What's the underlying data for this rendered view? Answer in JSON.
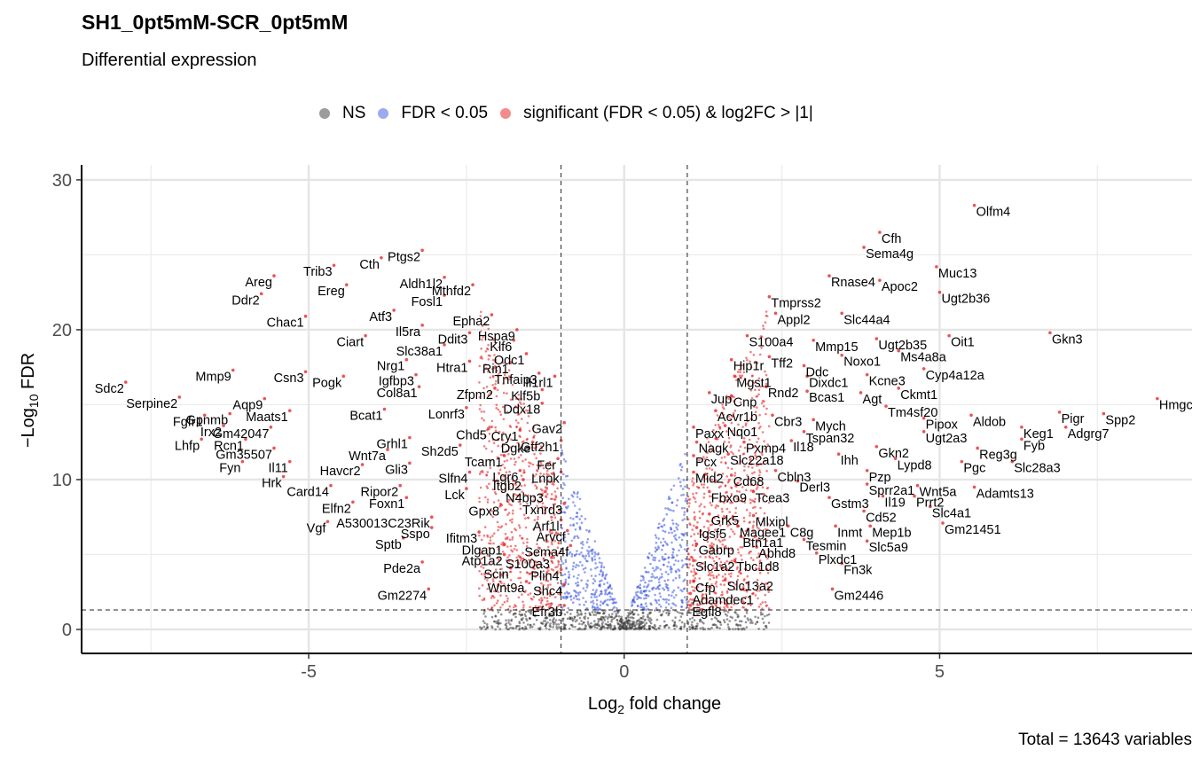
{
  "chart_data": {
    "type": "scatter",
    "title": "SH1_0pt5mM-SCR_0pt5mM",
    "subtitle": "Differential expression",
    "caption": "Total = 13643 variables",
    "xlabel": "Log2 fold change",
    "ylabel": "-Log10 FDR",
    "xlim": [
      -8.6,
      9.0
    ],
    "ylim": [
      -1.6,
      31.0
    ],
    "x_ticks": [
      -5,
      0,
      5
    ],
    "y_ticks": [
      0,
      10,
      20,
      30
    ],
    "grid": true,
    "legend_position": "top",
    "thresholds": {
      "log2fc": [
        -1,
        1
      ],
      "fdr_line": 1.3
    },
    "legend": [
      {
        "label": "NS",
        "color": "#3a3a3a"
      },
      {
        "label": "FDR < 0.05",
        "color": "#3b55e0"
      },
      {
        "label": "significant (FDR < 0.05) & log2FC > |1|",
        "color": "#e41a1c"
      }
    ],
    "labeled_points": [
      {
        "gene": "Olfm4",
        "x": 5.55,
        "y": 28.3
      },
      {
        "gene": "Cfh",
        "x": 4.05,
        "y": 26.5
      },
      {
        "gene": "Sema4g",
        "x": 3.8,
        "y": 25.5
      },
      {
        "gene": "Muc13",
        "x": 4.95,
        "y": 24.2
      },
      {
        "gene": "Rnase4",
        "x": 3.25,
        "y": 23.6
      },
      {
        "gene": "Apoc2",
        "x": 4.05,
        "y": 23.3
      },
      {
        "gene": "Ugt2b36",
        "x": 5.0,
        "y": 22.5
      },
      {
        "gene": "Tmprss2",
        "x": 2.3,
        "y": 22.2
      },
      {
        "gene": "Appl2",
        "x": 2.4,
        "y": 21.1
      },
      {
        "gene": "Slc44a4",
        "x": 3.45,
        "y": 21.1
      },
      {
        "gene": "Oit1",
        "x": 5.15,
        "y": 19.6
      },
      {
        "gene": "Ugt2b35",
        "x": 4.0,
        "y": 19.4
      },
      {
        "gene": "Gkn3",
        "x": 6.75,
        "y": 19.8
      },
      {
        "gene": "Mmp15",
        "x": 3.0,
        "y": 19.3
      },
      {
        "gene": "S100a4",
        "x": 1.95,
        "y": 19.6
      },
      {
        "gene": "Ms4a8a",
        "x": 4.35,
        "y": 18.6
      },
      {
        "gene": "Noxo1",
        "x": 3.45,
        "y": 18.3
      },
      {
        "gene": "Cyp4a12a",
        "x": 4.75,
        "y": 17.4
      },
      {
        "gene": "Tff2",
        "x": 2.3,
        "y": 18.2
      },
      {
        "gene": "Hip1r",
        "x": 1.7,
        "y": 18.0
      },
      {
        "gene": "Ddc",
        "x": 2.85,
        "y": 17.6
      },
      {
        "gene": "Kcne3",
        "x": 3.85,
        "y": 17.0
      },
      {
        "gene": "Dixdc1",
        "x": 2.9,
        "y": 16.9
      },
      {
        "gene": "Mgst1",
        "x": 1.75,
        "y": 16.9
      },
      {
        "gene": "Rnd2",
        "x": 2.25,
        "y": 16.2
      },
      {
        "gene": "Bcas1",
        "x": 2.9,
        "y": 15.9
      },
      {
        "gene": "Agt",
        "x": 3.75,
        "y": 15.8
      },
      {
        "gene": "Ckmt1",
        "x": 4.35,
        "y": 16.1
      },
      {
        "gene": "Jup",
        "x": 1.35,
        "y": 15.8
      },
      {
        "gene": "Cnp",
        "x": 1.7,
        "y": 15.6
      },
      {
        "gene": "Tm4sf20",
        "x": 4.15,
        "y": 14.9
      },
      {
        "gene": "Acvr1b",
        "x": 1.45,
        "y": 14.6
      },
      {
        "gene": "Cbr3",
        "x": 2.35,
        "y": 14.3
      },
      {
        "gene": "Mych",
        "x": 3.0,
        "y": 14.0
      },
      {
        "gene": "Pipox",
        "x": 4.75,
        "y": 14.1
      },
      {
        "gene": "Aldob",
        "x": 5.5,
        "y": 14.3
      },
      {
        "gene": "Pigr",
        "x": 6.9,
        "y": 14.5
      },
      {
        "gene": "Spp2",
        "x": 7.6,
        "y": 14.4
      },
      {
        "gene": "Hmgcs2",
        "x": 8.45,
        "y": 15.4
      },
      {
        "gene": "Keg1",
        "x": 6.3,
        "y": 13.5
      },
      {
        "gene": "Adgrg7",
        "x": 7.0,
        "y": 13.5
      },
      {
        "gene": "Tspan32",
        "x": 2.85,
        "y": 13.2
      },
      {
        "gene": "Ugt2a3",
        "x": 4.75,
        "y": 13.2
      },
      {
        "gene": "Paxx",
        "x": 1.1,
        "y": 13.5
      },
      {
        "gene": "Nqo1",
        "x": 1.6,
        "y": 13.6
      },
      {
        "gene": "Il18",
        "x": 2.65,
        "y": 12.6
      },
      {
        "gene": "Nagk",
        "x": 1.15,
        "y": 12.5
      },
      {
        "gene": "Pxmp4",
        "x": 1.9,
        "y": 12.5
      },
      {
        "gene": "Fyb",
        "x": 6.3,
        "y": 12.7
      },
      {
        "gene": "Gkn2",
        "x": 4.0,
        "y": 12.2
      },
      {
        "gene": "Reg3g",
        "x": 5.6,
        "y": 12.1
      },
      {
        "gene": "Pcx",
        "x": 1.1,
        "y": 11.6
      },
      {
        "gene": "Slc22a18",
        "x": 1.65,
        "y": 11.7
      },
      {
        "gene": "Ihh",
        "x": 3.4,
        "y": 11.7
      },
      {
        "gene": "Lypd8",
        "x": 4.3,
        "y": 11.4
      },
      {
        "gene": "Pgc",
        "x": 5.35,
        "y": 11.2
      },
      {
        "gene": "Slc28a3",
        "x": 6.15,
        "y": 11.2
      },
      {
        "gene": "Cd68",
        "x": 1.7,
        "y": 10.3
      },
      {
        "gene": "Mid2",
        "x": 1.1,
        "y": 10.5
      },
      {
        "gene": "Cbln3",
        "x": 2.4,
        "y": 10.6
      },
      {
        "gene": "Pzp",
        "x": 3.85,
        "y": 10.6
      },
      {
        "gene": "Derl3",
        "x": 2.75,
        "y": 9.9
      },
      {
        "gene": "Sprr2a1",
        "x": 3.85,
        "y": 9.7
      },
      {
        "gene": "Wnt5a",
        "x": 4.65,
        "y": 9.6
      },
      {
        "gene": "Adamts13",
        "x": 5.55,
        "y": 9.5
      },
      {
        "gene": "Fbxo9",
        "x": 1.35,
        "y": 9.2
      },
      {
        "gene": "Tcea3",
        "x": 2.05,
        "y": 9.2
      },
      {
        "gene": "Prrt2",
        "x": 4.6,
        "y": 8.9
      },
      {
        "gene": "Il19",
        "x": 4.1,
        "y": 8.9
      },
      {
        "gene": "Gstm3",
        "x": 3.25,
        "y": 8.8
      },
      {
        "gene": "Slc4a1",
        "x": 4.85,
        "y": 8.2
      },
      {
        "gene": "Cd52",
        "x": 3.8,
        "y": 7.9
      },
      {
        "gene": "Grk5",
        "x": 1.35,
        "y": 7.7
      },
      {
        "gene": "Mlxipl",
        "x": 2.05,
        "y": 7.6
      },
      {
        "gene": "Gm21451",
        "x": 5.05,
        "y": 7.1
      },
      {
        "gene": "Magee1",
        "x": 1.8,
        "y": 6.9
      },
      {
        "gene": "C8g",
        "x": 2.6,
        "y": 6.9
      },
      {
        "gene": "Inmt",
        "x": 3.35,
        "y": 6.9
      },
      {
        "gene": "Mep1b",
        "x": 3.9,
        "y": 6.9
      },
      {
        "gene": "Igsf5",
        "x": 1.15,
        "y": 6.8
      },
      {
        "gene": "Btn1a1",
        "x": 1.85,
        "y": 6.2
      },
      {
        "gene": "Tesmin",
        "x": 2.85,
        "y": 6.0
      },
      {
        "gene": "Slc5a9",
        "x": 3.85,
        "y": 5.9
      },
      {
        "gene": "Gabrp",
        "x": 1.15,
        "y": 5.7
      },
      {
        "gene": "Abhd8",
        "x": 2.1,
        "y": 5.5
      },
      {
        "gene": "Plxdc1",
        "x": 3.05,
        "y": 5.1
      },
      {
        "gene": "Slc1a2",
        "x": 1.1,
        "y": 4.6
      },
      {
        "gene": "Tbc1d8",
        "x": 1.75,
        "y": 4.6
      },
      {
        "gene": "Fn3k",
        "x": 3.45,
        "y": 4.4
      },
      {
        "gene": "Cfp",
        "x": 1.1,
        "y": 3.2
      },
      {
        "gene": "Slc13a2",
        "x": 1.6,
        "y": 3.3
      },
      {
        "gene": "Gm2446",
        "x": 3.3,
        "y": 2.7
      },
      {
        "gene": "Adamdec1",
        "x": 1.05,
        "y": 2.4
      },
      {
        "gene": "Egfl8",
        "x": 1.05,
        "y": 1.6
      },
      {
        "gene": "Ptgs2",
        "x": -3.2,
        "y": 25.3
      },
      {
        "gene": "Cth",
        "x": -3.85,
        "y": 24.8
      },
      {
        "gene": "Trib3",
        "x": -4.6,
        "y": 24.3
      },
      {
        "gene": "Aldh1l2",
        "x": -2.85,
        "y": 23.5
      },
      {
        "gene": "Areg",
        "x": -5.55,
        "y": 23.6
      },
      {
        "gene": "Ereg",
        "x": -4.4,
        "y": 23.0
      },
      {
        "gene": "Mthfd2",
        "x": -2.4,
        "y": 23.0
      },
      {
        "gene": "Ddr2",
        "x": -5.75,
        "y": 22.4
      },
      {
        "gene": "Fosl1",
        "x": -2.85,
        "y": 22.3
      },
      {
        "gene": "Epha2",
        "x": -2.1,
        "y": 21.0
      },
      {
        "gene": "Atf3",
        "x": -3.65,
        "y": 21.3
      },
      {
        "gene": "Chac1",
        "x": -5.05,
        "y": 20.9
      },
      {
        "gene": "Il5ra",
        "x": -3.2,
        "y": 20.3
      },
      {
        "gene": "Hspa9",
        "x": -1.7,
        "y": 20.0
      },
      {
        "gene": "Ddit3",
        "x": -2.45,
        "y": 19.8
      },
      {
        "gene": "Ciart",
        "x": -4.1,
        "y": 19.6
      },
      {
        "gene": "Slc38a1",
        "x": -2.85,
        "y": 19.0
      },
      {
        "gene": "Klf6",
        "x": -1.75,
        "y": 19.3
      },
      {
        "gene": "Odc1",
        "x": -1.55,
        "y": 18.4
      },
      {
        "gene": "Nrg1",
        "x": -3.45,
        "y": 18.0
      },
      {
        "gene": "Htra1",
        "x": -2.45,
        "y": 17.9
      },
      {
        "gene": "Rin1",
        "x": -1.8,
        "y": 17.8
      },
      {
        "gene": "Mmp9",
        "x": -6.2,
        "y": 17.3
      },
      {
        "gene": "Csn3",
        "x": -5.05,
        "y": 17.2
      },
      {
        "gene": "Pogk",
        "x": -4.45,
        "y": 16.9
      },
      {
        "gene": "Igfbp3",
        "x": -3.3,
        "y": 17.0
      },
      {
        "gene": "Tnfaip3",
        "x": -1.35,
        "y": 17.1
      },
      {
        "gene": "Il1rl1",
        "x": -1.1,
        "y": 16.9
      },
      {
        "gene": "Col8a1",
        "x": -3.25,
        "y": 16.2
      },
      {
        "gene": "Zfpm2",
        "x": -2.05,
        "y": 16.1
      },
      {
        "gene": "Klf5b",
        "x": -1.3,
        "y": 16.0
      },
      {
        "gene": "Sdc2",
        "x": -7.9,
        "y": 16.5
      },
      {
        "gene": "Serpine2",
        "x": -7.05,
        "y": 15.5
      },
      {
        "gene": "Ddx18",
        "x": -1.3,
        "y": 15.1
      },
      {
        "gene": "Lonrf3",
        "x": -2.5,
        "y": 14.8
      },
      {
        "gene": "Aqp9",
        "x": -5.7,
        "y": 15.4
      },
      {
        "gene": "Bcat1",
        "x": -3.8,
        "y": 14.7
      },
      {
        "gene": "Gpnmb",
        "x": -6.25,
        "y": 14.4
      },
      {
        "gene": "Maats1",
        "x": -5.3,
        "y": 14.6
      },
      {
        "gene": "Fgfr1",
        "x": -6.65,
        "y": 14.3
      },
      {
        "gene": "Gav2",
        "x": -0.95,
        "y": 13.8
      },
      {
        "gene": "Irx2",
        "x": -6.35,
        "y": 13.6
      },
      {
        "gene": "Gm42047",
        "x": -5.6,
        "y": 13.5
      },
      {
        "gene": "Chd5",
        "x": -2.15,
        "y": 13.4
      },
      {
        "gene": "Cry1",
        "x": -1.65,
        "y": 13.3
      },
      {
        "gene": "Lhfp",
        "x": -6.7,
        "y": 12.7
      },
      {
        "gene": "Rcn1",
        "x": -6.0,
        "y": 12.7
      },
      {
        "gene": "Grhl1",
        "x": -3.4,
        "y": 12.8
      },
      {
        "gene": "Gtf2h1",
        "x": -1.0,
        "y": 12.6
      },
      {
        "gene": "Dgke",
        "x": -1.45,
        "y": 12.5
      },
      {
        "gene": "Gm35507",
        "x": -5.55,
        "y": 12.1
      },
      {
        "gene": "Wnt7a",
        "x": -3.75,
        "y": 12.0
      },
      {
        "gene": "Sh2d5",
        "x": -2.6,
        "y": 12.3
      },
      {
        "gene": "Tcam1",
        "x": -1.9,
        "y": 11.6
      },
      {
        "gene": "Fer",
        "x": -1.05,
        "y": 11.4
      },
      {
        "gene": "Fyn",
        "x": -6.05,
        "y": 11.2
      },
      {
        "gene": "Il11",
        "x": -5.3,
        "y": 11.2
      },
      {
        "gene": "Havcr2",
        "x": -4.15,
        "y": 11.0
      },
      {
        "gene": "Gli3",
        "x": -3.4,
        "y": 11.1
      },
      {
        "gene": "Lgr6",
        "x": -1.65,
        "y": 10.6
      },
      {
        "gene": "Lnpk",
        "x": -1.0,
        "y": 10.5
      },
      {
        "gene": "Slfn4",
        "x": -2.45,
        "y": 10.5
      },
      {
        "gene": "Hrk",
        "x": -5.4,
        "y": 10.2
      },
      {
        "gene": "Itgb2",
        "x": -1.6,
        "y": 10.0
      },
      {
        "gene": "Card14",
        "x": -4.65,
        "y": 9.6
      },
      {
        "gene": "Ripor2",
        "x": -3.55,
        "y": 9.6
      },
      {
        "gene": "N4bp3",
        "x": -1.25,
        "y": 9.2
      },
      {
        "gene": "Lck",
        "x": -2.5,
        "y": 9.4
      },
      {
        "gene": "Foxn1",
        "x": -3.45,
        "y": 8.8
      },
      {
        "gene": "Elfn2",
        "x": -4.3,
        "y": 8.5
      },
      {
        "gene": "Txnrd3",
        "x": -0.95,
        "y": 8.4
      },
      {
        "gene": "Gpx8",
        "x": -1.95,
        "y": 8.3
      },
      {
        "gene": "A530013C23Rik",
        "x": -3.05,
        "y": 7.5
      },
      {
        "gene": "Arf1l",
        "x": -1.0,
        "y": 7.3
      },
      {
        "gene": "Vgf",
        "x": -4.7,
        "y": 7.2
      },
      {
        "gene": "Sspo",
        "x": -3.05,
        "y": 6.8
      },
      {
        "gene": "Ifitm3",
        "x": -2.3,
        "y": 6.5
      },
      {
        "gene": "Arvcf",
        "x": -0.9,
        "y": 6.6
      },
      {
        "gene": "Sptb",
        "x": -3.5,
        "y": 6.1
      },
      {
        "gene": "Sema4f",
        "x": -0.85,
        "y": 5.6
      },
      {
        "gene": "Dlgap1",
        "x": -1.9,
        "y": 5.7
      },
      {
        "gene": "Atp1a2",
        "x": -1.9,
        "y": 5.0
      },
      {
        "gene": "S100a3",
        "x": -1.15,
        "y": 4.8
      },
      {
        "gene": "Scin",
        "x": -1.8,
        "y": 4.1
      },
      {
        "gene": "Plin4",
        "x": -1.0,
        "y": 4.0
      },
      {
        "gene": "Pde2a",
        "x": -3.2,
        "y": 4.5
      },
      {
        "gene": "Wnt9a",
        "x": -1.55,
        "y": 3.2
      },
      {
        "gene": "Shc4",
        "x": -0.95,
        "y": 3.0
      },
      {
        "gene": "Gm2274",
        "x": -3.1,
        "y": 2.7
      },
      {
        "gene": "Efr3b",
        "x": -0.95,
        "y": 1.6
      }
    ]
  }
}
